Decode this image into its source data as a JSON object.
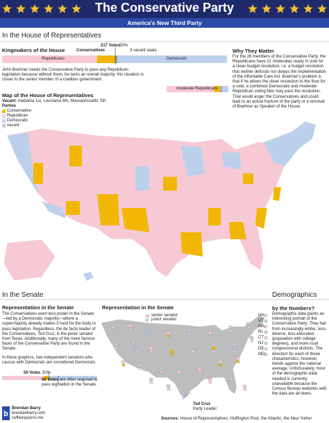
{
  "header": {
    "title": "The Conservative Party",
    "subtitle": "America's New Third Party"
  },
  "house": {
    "heading": "In the House of Representatives",
    "kingmakers": {
      "title": "Kingmakers of the House",
      "votes": "217 Votes",
      "percent": "50%",
      "conservatives": "Conservatives",
      "vacant": "3 vacant seats",
      "republicans": "Republicans",
      "democrats": "Democrats"
    },
    "text": "John Boehner needs the Conservative Party to pass any Republican legislation because without them, he lacks an overall majority. His situation is closer to the senior member of a coalition government.",
    "why": {
      "title": "Why They Matter",
      "text": "For the 28 members of the Conservative Party, the Republicans have 21 moderates ready to vote for a clean budget resolution, i.e. a budget resolution that neither defunds nor delays the implementation of the Affordable Care Act. Boehner's problem is that if he allows the clean resolution to the floor for a vote, a combined Democratic and moderate Republican voting bloc may pass the resolution. That would anger the Conservatives and could lead to an actual fracture of the party or a removal of Boehner as Speaker of the House.",
      "moderates": "moderate Republicans"
    },
    "map": {
      "title": "Map of the House of Representatives",
      "vacant_label": "Vacant:",
      "vacant": "Alabama 1st, Louisiana 5th, Massachusetts' 5th",
      "parties": "Parties",
      "legend": [
        "Conservative",
        "Republican",
        "Democratic",
        "vacant"
      ]
    }
  },
  "senate": {
    "heading": "In the Senate",
    "representation": {
      "title": "Representation in the Senate",
      "text": [
        "The Conservatives exert less power in the Senate—led by a Democratic majority—where a supermajority already makes it hard for the body to pass legislation. Regardless, the de facto leader of the Conservatives, Ted Cruz, is the junior senator from Texas. Additionally, many of the more famous faces of the Conservative Party are found in the Senate.",
        "In these graphics, two independent senators who caucus with Democrats are considered Democrats."
      ],
      "votes": "50 Votes",
      "percent": "50%",
      "supermajority": "60 Votes",
      "supermajority_text": "are often required to pass legislation in the Senate."
    },
    "map": {
      "title": "Representation in the Senate",
      "senior": "senior senator",
      "junior": "junior senator",
      "states": [
        "NH",
        "VT",
        "MA",
        "RI",
        "CT",
        "NJ",
        "DE",
        "MD"
      ],
      "leader_name": "Ted Cruz",
      "leader_role": "Party Leader"
    }
  },
  "demographics": {
    "heading": "Demographics",
    "title": "by the Numbers?",
    "text": "Demographic data paints an interesting portrait of the Conservative Party. They hail from increasingly whiter, less-diverse, less-educated (population with college degrees), and more rural congressional districts. The direction for each of these characteristics, however, trends against the national average. Unfortunately, most of the demographic data needed is currently unavailable because the Census Bureau websites with the data are all down."
  },
  "footer": {
    "author": "Brendan Barry",
    "site1": "brendanbarry.com",
    "site2": "coffeespoons.me",
    "sources_label": "Sources:",
    "sources": "House of Representatives, Huffington Post, the Atlantic, the New Yorker"
  }
}
